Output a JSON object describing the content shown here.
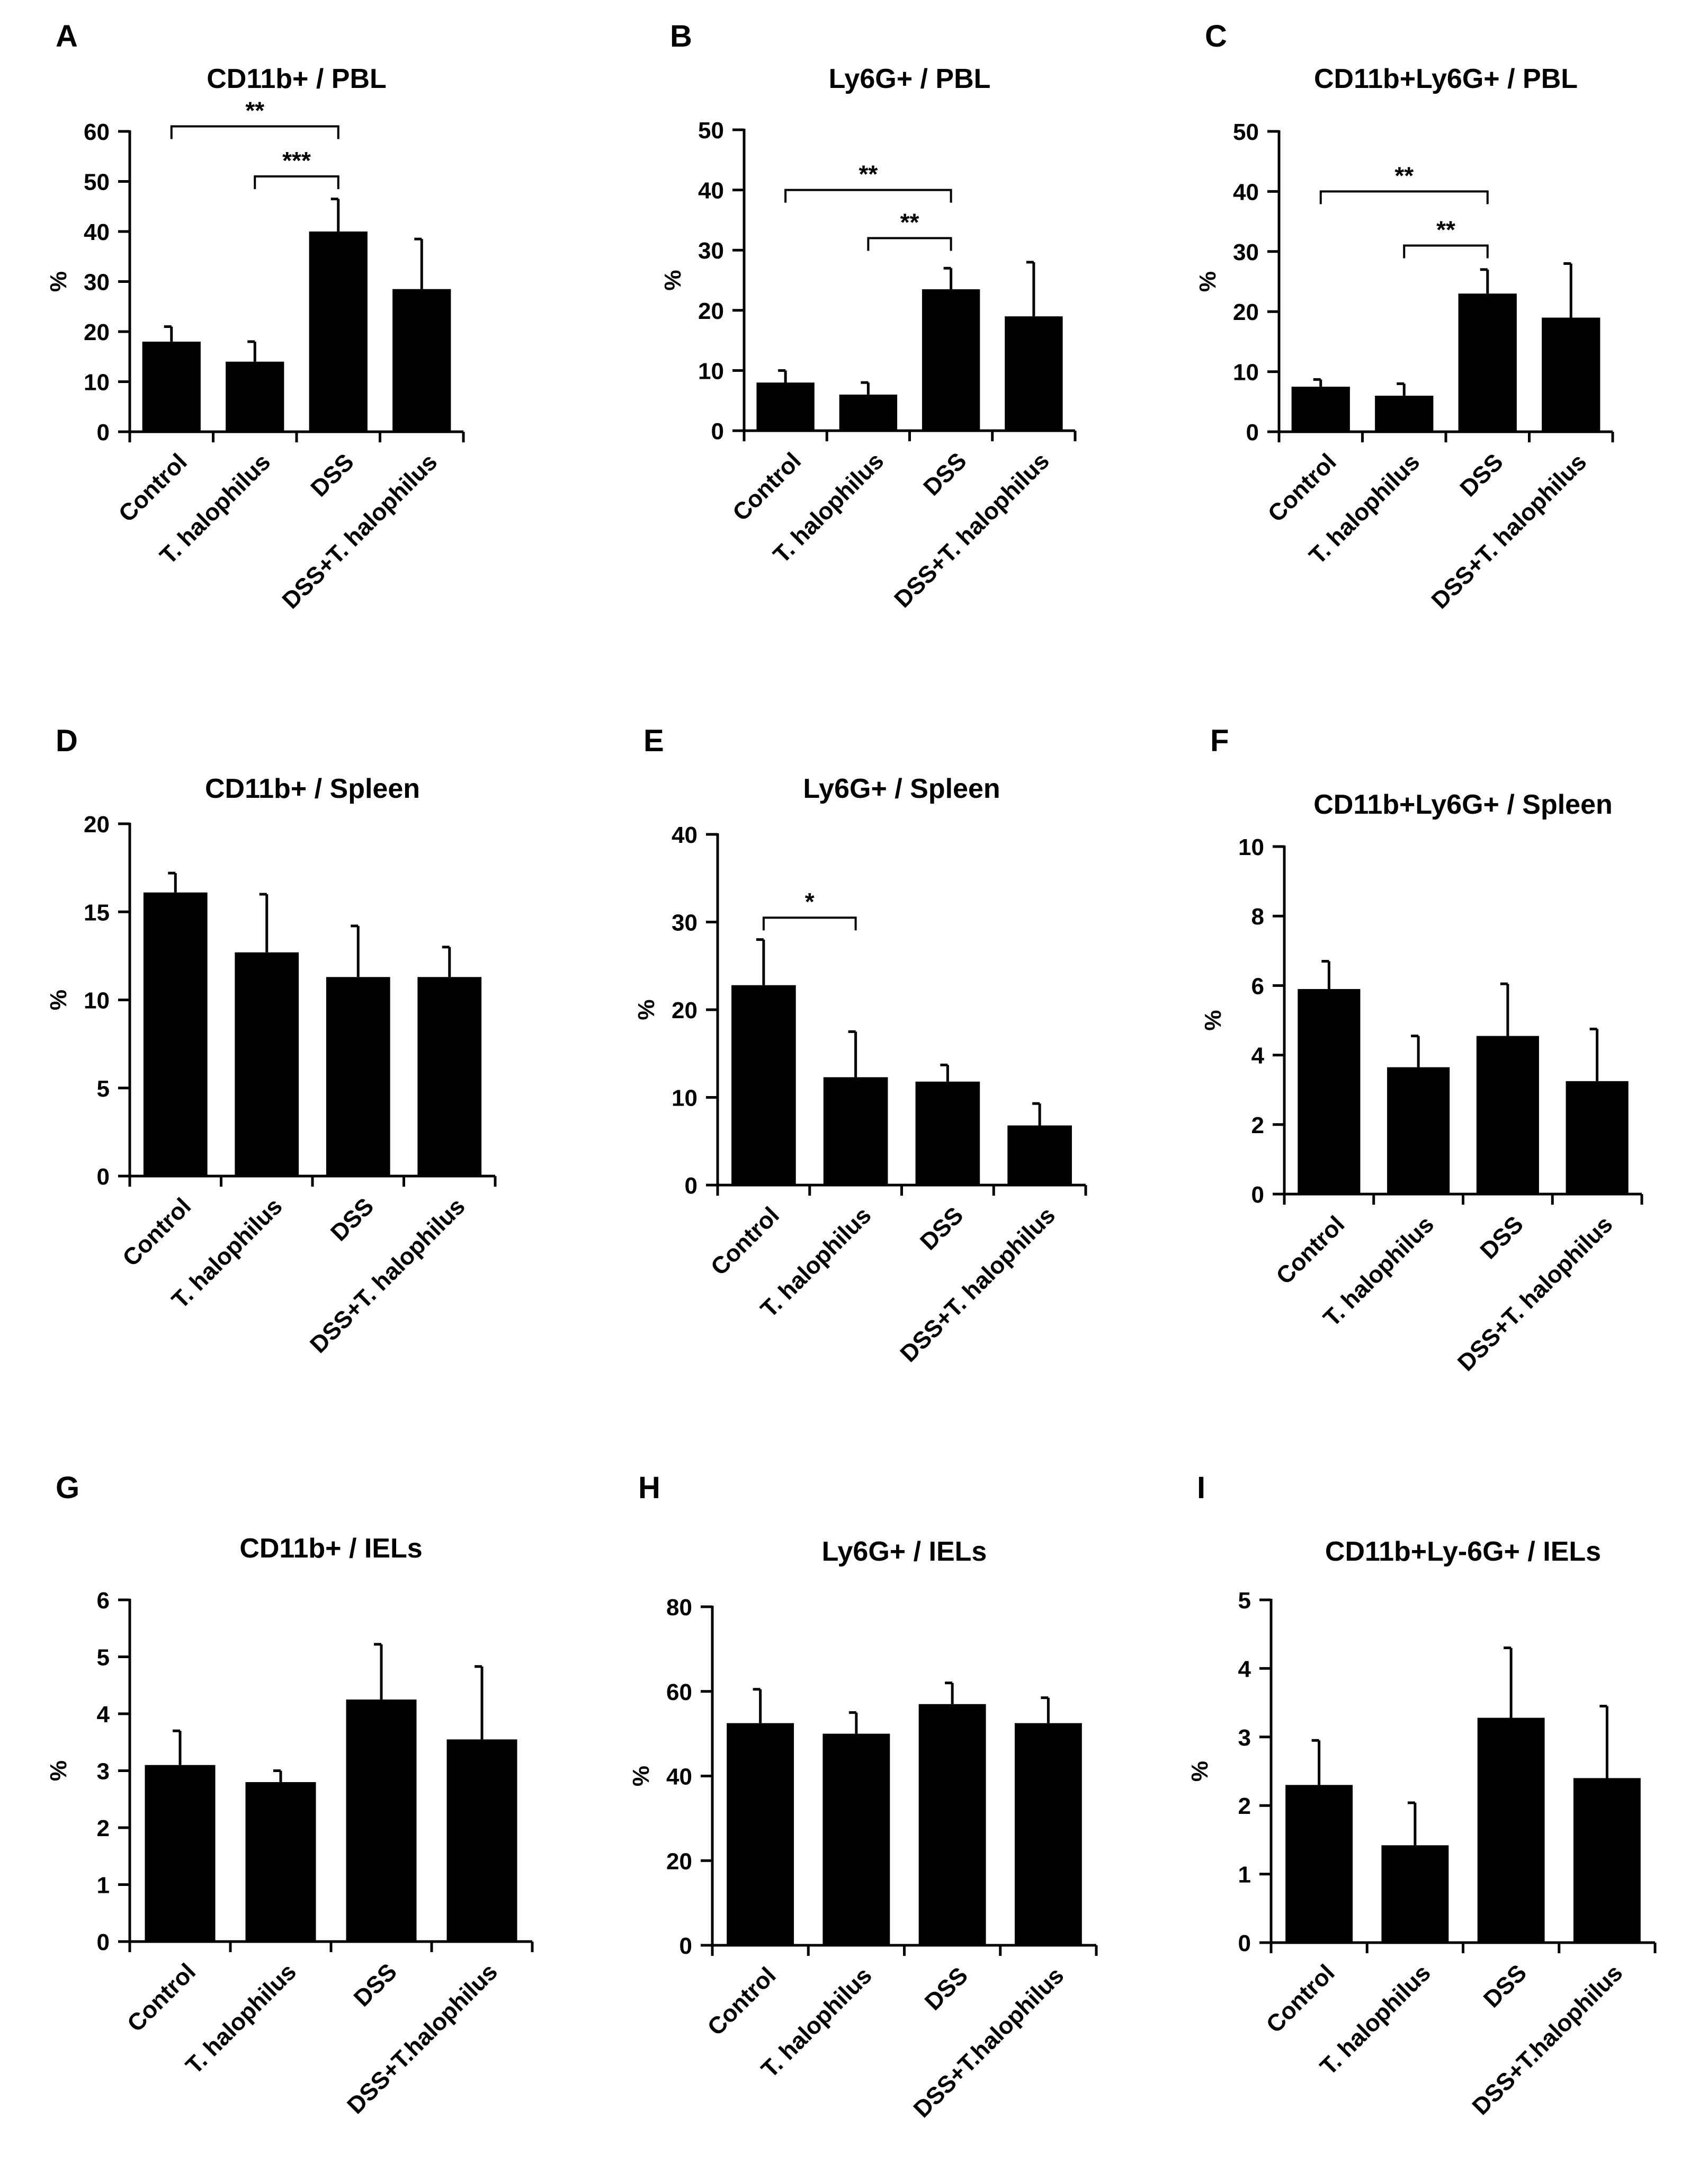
{
  "chart_data": [
    {
      "type": "bar",
      "panel": "A",
      "title": "CD11b+ / PBL",
      "ylabel": "%",
      "categories": [
        "Control",
        "T. halophilus",
        "DSS",
        "DSS+T. halophilus"
      ],
      "values": [
        18,
        14,
        40,
        28.5
      ],
      "errors": [
        3,
        4,
        6.5,
        10
      ],
      "ylim": [
        0,
        60
      ],
      "yticks": [
        "0",
        "10",
        "20",
        "30",
        "40",
        "50",
        "60"
      ],
      "significance": [
        {
          "from": 0,
          "to": 2,
          "label": "**",
          "y": 61
        },
        {
          "from": 1,
          "to": 2,
          "label": "***",
          "y": 51
        }
      ]
    },
    {
      "type": "bar",
      "panel": "B",
      "title": "Ly6G+ / PBL",
      "ylabel": "%",
      "categories": [
        "Control",
        "T. halophilus",
        "DSS",
        "DSS+T. halophilus"
      ],
      "values": [
        8,
        6,
        23.5,
        19
      ],
      "errors": [
        2,
        2,
        3.5,
        9
      ],
      "ylim": [
        0,
        50
      ],
      "yticks": [
        "0",
        "10",
        "20",
        "30",
        "40",
        "50"
      ],
      "significance": [
        {
          "from": 0,
          "to": 2,
          "label": "**",
          "y": 40
        },
        {
          "from": 1,
          "to": 2,
          "label": "**",
          "y": 32
        }
      ]
    },
    {
      "type": "bar",
      "panel": "C",
      "title": "CD11b+Ly6G+ / PBL",
      "ylabel": "%",
      "categories": [
        "Control",
        "T. halophilus",
        "DSS",
        "DSS+T. halophilus"
      ],
      "values": [
        7.5,
        6,
        23,
        19
      ],
      "errors": [
        1.2,
        2,
        4,
        9
      ],
      "ylim": [
        0,
        50
      ],
      "yticks": [
        "0",
        "10",
        "20",
        "30",
        "40",
        "50"
      ],
      "significance": [
        {
          "from": 0,
          "to": 2,
          "label": "**",
          "y": 40
        },
        {
          "from": 1,
          "to": 2,
          "label": "**",
          "y": 31
        }
      ]
    },
    {
      "type": "bar",
      "panel": "D",
      "title": "CD11b+ / Spleen",
      "ylabel": "%",
      "categories": [
        "Control",
        "T. halophilus",
        "DSS",
        "DSS+T. halophilus"
      ],
      "values": [
        16.1,
        12.7,
        11.3,
        11.3
      ],
      "errors": [
        1.1,
        3.3,
        2.9,
        1.7
      ],
      "ylim": [
        0,
        20
      ],
      "yticks": [
        "0",
        "5",
        "10",
        "15",
        "20"
      ],
      "significance": []
    },
    {
      "type": "bar",
      "panel": "E",
      "title": "Ly6G+ / Spleen",
      "ylabel": "%",
      "categories": [
        "Control",
        "T. halophilus",
        "DSS",
        "DSS+T. halophilus"
      ],
      "values": [
        22.8,
        12.3,
        11.8,
        6.8
      ],
      "errors": [
        5.2,
        5.2,
        1.9,
        2.5
      ],
      "ylim": [
        0,
        40
      ],
      "yticks": [
        "0",
        "10",
        "20",
        "30",
        "40"
      ],
      "significance": [
        {
          "from": 0,
          "to": 1,
          "label": "*",
          "y": 30.5
        }
      ]
    },
    {
      "type": "bar",
      "panel": "F",
      "title": "CD11b+Ly6G+ / Spleen",
      "ylabel": "%",
      "categories": [
        "Control",
        "T. halophilus",
        "DSS",
        "DSS+T. halophilus"
      ],
      "values": [
        5.9,
        3.65,
        4.55,
        3.25
      ],
      "errors": [
        0.8,
        0.9,
        1.5,
        1.5
      ],
      "ylim": [
        0,
        10
      ],
      "yticks": [
        "0",
        "2",
        "4",
        "6",
        "8",
        "10"
      ],
      "significance": []
    },
    {
      "type": "bar",
      "panel": "G",
      "title": "CD11b+ / IELs",
      "ylabel": "%",
      "categories": [
        "Control",
        "T. halophilus",
        "DSS",
        "DSS+T.halophilus"
      ],
      "values": [
        3.1,
        2.8,
        4.25,
        3.55
      ],
      "errors": [
        0.6,
        0.2,
        0.97,
        1.28
      ],
      "ylim": [
        0,
        6
      ],
      "yticks": [
        "0",
        "1",
        "2",
        "3",
        "4",
        "5",
        "6"
      ],
      "significance": []
    },
    {
      "type": "bar",
      "panel": "H",
      "title": "Ly6G+ / IELs",
      "ylabel": "%",
      "categories": [
        "Control",
        "T. halophilus",
        "DSS",
        "DSS+T.halophilus"
      ],
      "values": [
        52.5,
        50,
        57,
        52.5
      ],
      "errors": [
        8,
        5,
        5,
        6
      ],
      "ylim": [
        0,
        80
      ],
      "yticks": [
        "0",
        "20",
        "40",
        "60",
        "80"
      ],
      "significance": []
    },
    {
      "type": "bar",
      "panel": "I",
      "title": "CD11b+Ly-6G+ / IELs",
      "ylabel": "%",
      "categories": [
        "Control",
        "T. halophilus",
        "DSS",
        "DSS+T.halophilus"
      ],
      "values": [
        2.3,
        1.42,
        3.28,
        2.4
      ],
      "errors": [
        0.65,
        0.62,
        1.02,
        1.05
      ],
      "ylim": [
        0,
        5
      ],
      "yticks": [
        "0",
        "1",
        "2",
        "3",
        "4",
        "5"
      ],
      "significance": []
    }
  ]
}
